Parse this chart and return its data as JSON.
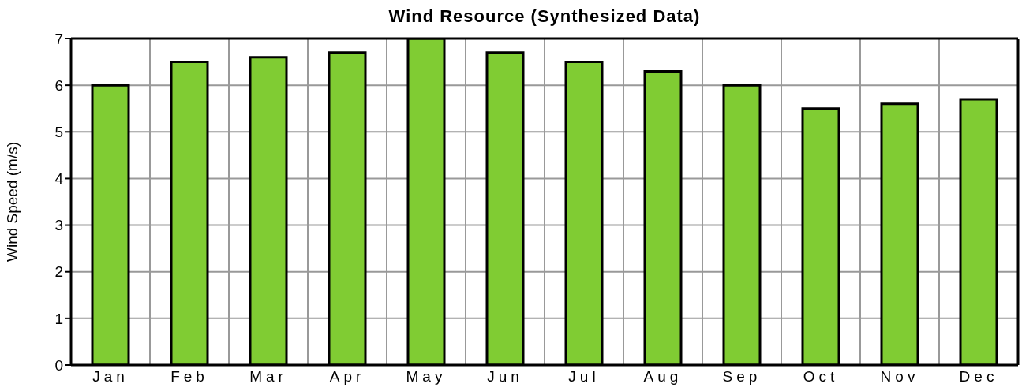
{
  "chart_data": {
    "type": "bar",
    "title": "Wind Resource (Synthesized Data)",
    "ylabel": "Wind Speed (m/s)",
    "categories": [
      "Jan",
      "Feb",
      "Mar",
      "Apr",
      "May",
      "Jun",
      "Jul",
      "Aug",
      "Sep",
      "Oct",
      "Nov",
      "Dec"
    ],
    "values": [
      6,
      6.5,
      6.6,
      6.7,
      7,
      6.7,
      6.5,
      6.3,
      6,
      5.5,
      5.6,
      5.7
    ],
    "color": "#80cc33",
    "ylim": [
      0,
      7
    ],
    "yticks": [
      0,
      1,
      2,
      3,
      4,
      5,
      6,
      7
    ],
    "grid": true
  }
}
